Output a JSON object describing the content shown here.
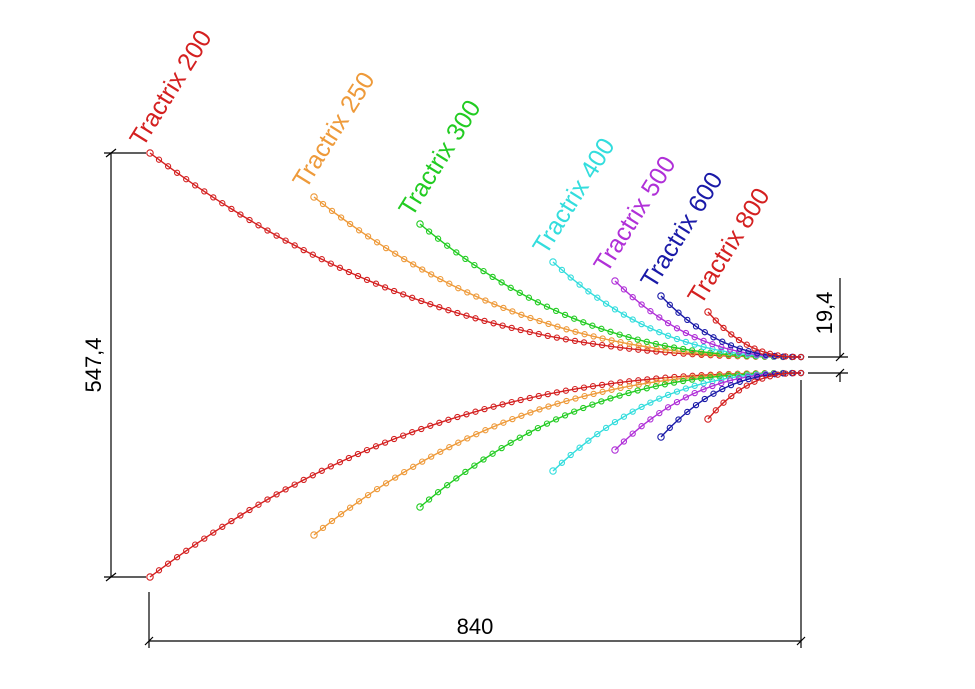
{
  "dimensions": {
    "height": "547,4",
    "width": "840",
    "mouth_gap": "19,4"
  },
  "curves": [
    {
      "label": "Tractrix 200",
      "color": "#d42020"
    },
    {
      "label": "Tractrix 250",
      "color": "#ee9a3a"
    },
    {
      "label": "Tractrix 300",
      "color": "#22cc22"
    },
    {
      "label": "Tractrix 400",
      "color": "#33dddd"
    },
    {
      "label": "Tractrix 500",
      "color": "#b030d8"
    },
    {
      "label": "Tractrix 600",
      "color": "#1a1aa8"
    },
    {
      "label": "Tractrix 800",
      "color": "#d42020"
    }
  ]
}
